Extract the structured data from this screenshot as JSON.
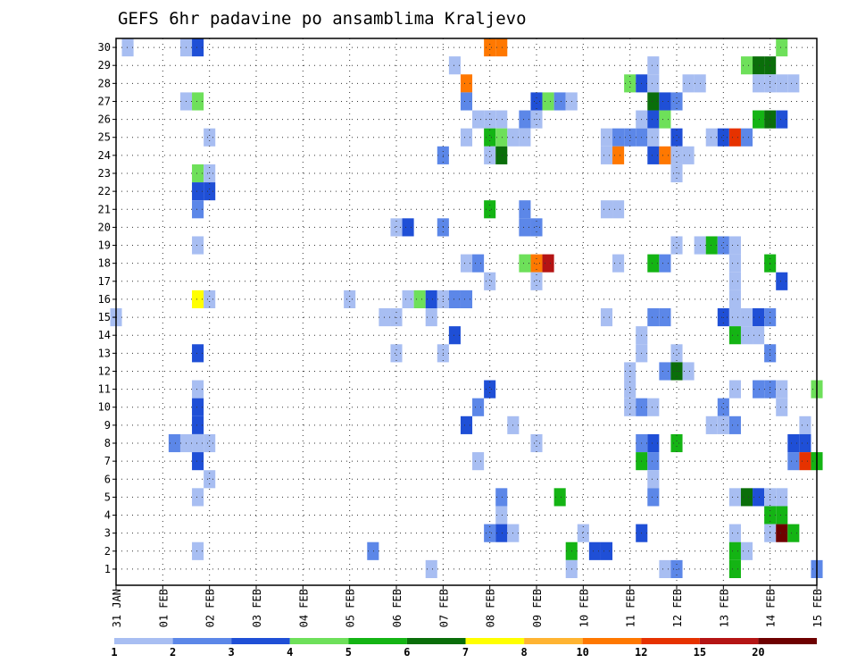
{
  "chart_data": {
    "type": "heatmap",
    "title": "GEFS 6hr padavine po ansamblima Kraljevo",
    "xlabel": "",
    "ylabel": "",
    "x_ticks": [
      "31 JAN",
      "01 FEB",
      "02 FEB",
      "03 FEB",
      "04 FEB",
      "05 FEB",
      "06 FEB",
      "07 FEB",
      "08 FEB",
      "09 FEB",
      "10 FEB",
      "11 FEB",
      "12 FEB",
      "13 FEB",
      "14 FEB",
      "15 FEB"
    ],
    "y_ticks": [
      "1",
      "2",
      "3",
      "4",
      "5",
      "6",
      "7",
      "8",
      "9",
      "10",
      "11",
      "12",
      "13",
      "14",
      "15",
      "16",
      "17",
      "18",
      "19",
      "20",
      "21",
      "22",
      "23",
      "24",
      "25",
      "26",
      "27",
      "28",
      "29",
      "30"
    ],
    "x_range_steps": [
      0,
      60
    ],
    "y_range_members": [
      0,
      30
    ],
    "x_step_hours": 6,
    "color_scale": {
      "levels": [
        "1",
        "2",
        "3",
        "4",
        "5",
        "6",
        "7",
        "8",
        "10",
        "12",
        "15",
        "20"
      ],
      "colors": [
        "#a8bef2",
        "#5c87e8",
        "#1f4fd6",
        "#6ee05a",
        "#14b414",
        "#0a6e0a",
        "#ffff00",
        "#ffb432",
        "#ff7800",
        "#e63200",
        "#b41414",
        "#6e0000"
      ]
    },
    "cells": [
      {
        "m": 30,
        "t": [
          [
            1,
            0
          ],
          [
            6,
            0
          ],
          [
            7,
            2
          ],
          [
            32,
            8
          ],
          [
            33,
            8
          ],
          [
            57,
            3
          ]
        ]
      },
      {
        "m": 29,
        "t": [
          [
            29,
            0
          ],
          [
            46,
            0
          ],
          [
            54,
            3
          ],
          [
            55,
            5
          ],
          [
            56,
            5
          ]
        ]
      },
      {
        "m": 28,
        "t": [
          [
            30,
            8
          ],
          [
            44,
            3
          ],
          [
            45,
            2
          ],
          [
            46,
            0
          ],
          [
            49,
            0
          ],
          [
            50,
            0
          ],
          [
            55,
            0
          ],
          [
            56,
            0
          ],
          [
            57,
            0
          ],
          [
            58,
            0
          ]
        ]
      },
      {
        "m": 27,
        "t": [
          [
            6,
            0
          ],
          [
            7,
            3
          ],
          [
            30,
            1
          ],
          [
            36,
            2
          ],
          [
            37,
            3
          ],
          [
            38,
            1
          ],
          [
            39,
            0
          ],
          [
            46,
            5
          ],
          [
            47,
            2
          ],
          [
            48,
            1
          ]
        ]
      },
      {
        "m": 26,
        "t": [
          [
            31,
            0
          ],
          [
            32,
            0
          ],
          [
            33,
            0
          ],
          [
            35,
            1
          ],
          [
            36,
            0
          ],
          [
            45,
            0
          ],
          [
            46,
            2
          ],
          [
            47,
            3
          ],
          [
            55,
            4
          ],
          [
            56,
            5
          ],
          [
            57,
            2
          ]
        ]
      },
      {
        "m": 25,
        "t": [
          [
            8,
            0
          ],
          [
            30,
            0
          ],
          [
            32,
            4
          ],
          [
            33,
            3
          ],
          [
            34,
            0
          ],
          [
            35,
            0
          ],
          [
            42,
            0
          ],
          [
            43,
            1
          ],
          [
            44,
            1
          ],
          [
            45,
            1
          ],
          [
            46,
            0
          ],
          [
            48,
            2
          ],
          [
            51,
            0
          ],
          [
            52,
            2
          ],
          [
            53,
            9
          ],
          [
            54,
            1
          ]
        ]
      },
      {
        "m": 24,
        "t": [
          [
            28,
            1
          ],
          [
            32,
            0
          ],
          [
            33,
            5
          ],
          [
            42,
            0
          ],
          [
            43,
            8
          ],
          [
            46,
            2
          ],
          [
            47,
            8
          ],
          [
            48,
            0
          ],
          [
            49,
            0
          ]
        ]
      },
      {
        "m": 23,
        "t": [
          [
            7,
            3
          ],
          [
            8,
            0
          ],
          [
            48,
            0
          ]
        ]
      },
      {
        "m": 22,
        "t": [
          [
            7,
            2
          ],
          [
            8,
            2
          ]
        ]
      },
      {
        "m": 21,
        "t": [
          [
            7,
            1
          ],
          [
            32,
            4
          ],
          [
            35,
            1
          ],
          [
            42,
            0
          ],
          [
            43,
            0
          ]
        ]
      },
      {
        "m": 20,
        "t": [
          [
            24,
            0
          ],
          [
            25,
            2
          ],
          [
            28,
            1
          ],
          [
            35,
            1
          ],
          [
            36,
            1
          ]
        ]
      },
      {
        "m": 19,
        "t": [
          [
            7,
            0
          ],
          [
            48,
            0
          ],
          [
            50,
            0
          ],
          [
            51,
            4
          ],
          [
            52,
            1
          ],
          [
            53,
            0
          ]
        ]
      },
      {
        "m": 18,
        "t": [
          [
            30,
            0
          ],
          [
            31,
            1
          ],
          [
            35,
            3
          ],
          [
            36,
            8
          ],
          [
            37,
            10
          ],
          [
            43,
            0
          ],
          [
            46,
            4
          ],
          [
            47,
            1
          ],
          [
            53,
            0
          ],
          [
            56,
            4
          ]
        ]
      },
      {
        "m": 17,
        "t": [
          [
            32,
            0
          ],
          [
            36,
            0
          ],
          [
            53,
            0
          ],
          [
            57,
            2
          ]
        ]
      },
      {
        "m": 16,
        "t": [
          [
            7,
            6
          ],
          [
            8,
            0
          ],
          [
            20,
            0
          ],
          [
            25,
            0
          ],
          [
            26,
            3
          ],
          [
            27,
            2
          ],
          [
            28,
            0
          ],
          [
            29,
            1
          ],
          [
            30,
            1
          ],
          [
            53,
            0
          ]
        ]
      },
      {
        "m": 15,
        "t": [
          [
            0,
            0
          ],
          [
            23,
            0
          ],
          [
            24,
            0
          ],
          [
            27,
            0
          ],
          [
            42,
            0
          ],
          [
            46,
            1
          ],
          [
            47,
            1
          ],
          [
            52,
            2
          ],
          [
            53,
            0
          ],
          [
            54,
            0
          ],
          [
            55,
            2
          ],
          [
            56,
            1
          ]
        ]
      },
      {
        "m": 14,
        "t": [
          [
            29,
            2
          ],
          [
            45,
            0
          ],
          [
            53,
            4
          ],
          [
            54,
            0
          ],
          [
            55,
            0
          ]
        ]
      },
      {
        "m": 13,
        "t": [
          [
            7,
            2
          ],
          [
            24,
            0
          ],
          [
            28,
            0
          ],
          [
            45,
            0
          ],
          [
            48,
            0
          ],
          [
            56,
            1
          ]
        ]
      },
      {
        "m": 12,
        "t": [
          [
            44,
            0
          ],
          [
            47,
            1
          ],
          [
            48,
            5
          ],
          [
            49,
            0
          ]
        ]
      },
      {
        "m": 11,
        "t": [
          [
            7,
            0
          ],
          [
            32,
            2
          ],
          [
            44,
            0
          ],
          [
            53,
            0
          ],
          [
            55,
            1
          ],
          [
            56,
            1
          ],
          [
            57,
            0
          ],
          [
            60,
            3
          ]
        ]
      },
      {
        "m": 10,
        "t": [
          [
            7,
            2
          ],
          [
            31,
            1
          ],
          [
            44,
            0
          ],
          [
            45,
            1
          ],
          [
            46,
            0
          ],
          [
            52,
            1
          ],
          [
            57,
            0
          ]
        ]
      },
      {
        "m": 9,
        "t": [
          [
            7,
            2
          ],
          [
            30,
            2
          ],
          [
            34,
            0
          ],
          [
            51,
            0
          ],
          [
            52,
            0
          ],
          [
            53,
            1
          ],
          [
            59,
            0
          ]
        ]
      },
      {
        "m": 8,
        "t": [
          [
            5,
            1
          ],
          [
            6,
            0
          ],
          [
            7,
            0
          ],
          [
            8,
            0
          ],
          [
            36,
            0
          ],
          [
            45,
            1
          ],
          [
            46,
            2
          ],
          [
            48,
            4
          ],
          [
            58,
            2
          ],
          [
            59,
            2
          ]
        ]
      },
      {
        "m": 7,
        "t": [
          [
            7,
            2
          ],
          [
            31,
            0
          ],
          [
            45,
            4
          ],
          [
            46,
            1
          ],
          [
            58,
            1
          ],
          [
            59,
            9
          ],
          [
            60,
            4
          ]
        ]
      },
      {
        "m": 6,
        "t": [
          [
            8,
            0
          ],
          [
            46,
            0
          ]
        ]
      },
      {
        "m": 5,
        "t": [
          [
            7,
            0
          ],
          [
            33,
            1
          ],
          [
            38,
            4
          ],
          [
            46,
            1
          ],
          [
            53,
            0
          ],
          [
            54,
            5
          ],
          [
            55,
            2
          ],
          [
            56,
            0
          ],
          [
            57,
            0
          ]
        ]
      },
      {
        "m": 4,
        "t": [
          [
            33,
            0
          ],
          [
            56,
            4
          ],
          [
            57,
            4
          ]
        ]
      },
      {
        "m": 3,
        "t": [
          [
            32,
            1
          ],
          [
            33,
            2
          ],
          [
            34,
            0
          ],
          [
            40,
            0
          ],
          [
            45,
            2
          ],
          [
            53,
            0
          ],
          [
            56,
            0
          ],
          [
            57,
            11
          ],
          [
            58,
            4
          ]
        ]
      },
      {
        "m": 2,
        "t": [
          [
            7,
            0
          ],
          [
            22,
            1
          ],
          [
            39,
            4
          ],
          [
            41,
            2
          ],
          [
            42,
            2
          ],
          [
            53,
            4
          ],
          [
            54,
            0
          ]
        ]
      },
      {
        "m": 1,
        "t": [
          [
            27,
            0
          ],
          [
            39,
            0
          ],
          [
            47,
            0
          ],
          [
            48,
            1
          ],
          [
            53,
            4
          ],
          [
            60,
            1
          ]
        ]
      }
    ]
  }
}
